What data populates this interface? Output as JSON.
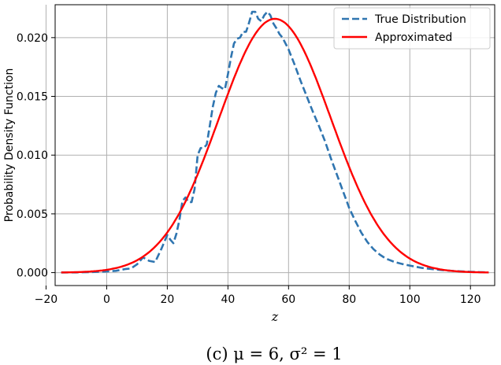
{
  "caption": "(c) μ = 6, σ² = 1",
  "chart_data": {
    "type": "line",
    "title": "",
    "xlabel": "z",
    "ylabel": "Probability Density Function",
    "xlim": [
      -17,
      128
    ],
    "ylim": [
      -0.0011,
      0.0228
    ],
    "xticks": [
      -20,
      0,
      20,
      40,
      60,
      80,
      100,
      120
    ],
    "xtick_labels": [
      "−20",
      "0",
      "20",
      "40",
      "60",
      "80",
      "100",
      "120"
    ],
    "yticks": [
      0.0,
      0.005,
      0.01,
      0.015,
      0.02
    ],
    "ytick_labels": [
      "0.000",
      "0.005",
      "0.010",
      "0.015",
      "0.020"
    ],
    "grid": true,
    "legend_position": "top-right",
    "series": [
      {
        "name": "True Distribution",
        "style": "dashed",
        "color": "#2f75b0",
        "x": [
          -15,
          -10,
          -5,
          0,
          3,
          6,
          8,
          10,
          12,
          14,
          16,
          18,
          19,
          20,
          21,
          22,
          23,
          24,
          25,
          26,
          27,
          28,
          29,
          30,
          31,
          32,
          33,
          34,
          35,
          36,
          37,
          38,
          39,
          40,
          41,
          42,
          43,
          44,
          45,
          46,
          47,
          48,
          49,
          50,
          51,
          52,
          53,
          54,
          55,
          56,
          57,
          58,
          60,
          62,
          64,
          66,
          68,
          70,
          72,
          74,
          76,
          78,
          80,
          82,
          84,
          86,
          88,
          90,
          92,
          95,
          98,
          100,
          104,
          108,
          112,
          116,
          120,
          124,
          126
        ],
        "y": [
          1e-05,
          2e-05,
          5e-05,
          0.0001,
          0.00015,
          0.0003,
          0.00035,
          0.0007,
          0.0013,
          0.001,
          0.0009,
          0.002,
          0.0026,
          0.0032,
          0.0028,
          0.0025,
          0.0033,
          0.0045,
          0.0061,
          0.0064,
          0.006,
          0.006,
          0.0071,
          0.01,
          0.0106,
          0.0106,
          0.0109,
          0.0125,
          0.0141,
          0.0153,
          0.0159,
          0.0157,
          0.0156,
          0.0169,
          0.0183,
          0.0195,
          0.0199,
          0.02,
          0.0205,
          0.0205,
          0.0213,
          0.0222,
          0.0222,
          0.0216,
          0.0214,
          0.0219,
          0.0222,
          0.0219,
          0.0212,
          0.0208,
          0.0203,
          0.02,
          0.019,
          0.0177,
          0.0163,
          0.015,
          0.0137,
          0.0125,
          0.0112,
          0.0097,
          0.0083,
          0.0069,
          0.0055,
          0.0044,
          0.0034,
          0.0026,
          0.002,
          0.00155,
          0.0012,
          0.0009,
          0.0007,
          0.0006,
          0.0004,
          0.00028,
          0.00018,
          0.00012,
          7e-05,
          3e-05,
          1e-05
        ]
      },
      {
        "name": "Approximated",
        "style": "solid",
        "color": "#ff0000",
        "distribution": "normal",
        "mean": 55.5,
        "std": 18.5,
        "peak": 0.0216,
        "x_range": [
          -15,
          126
        ]
      }
    ]
  }
}
